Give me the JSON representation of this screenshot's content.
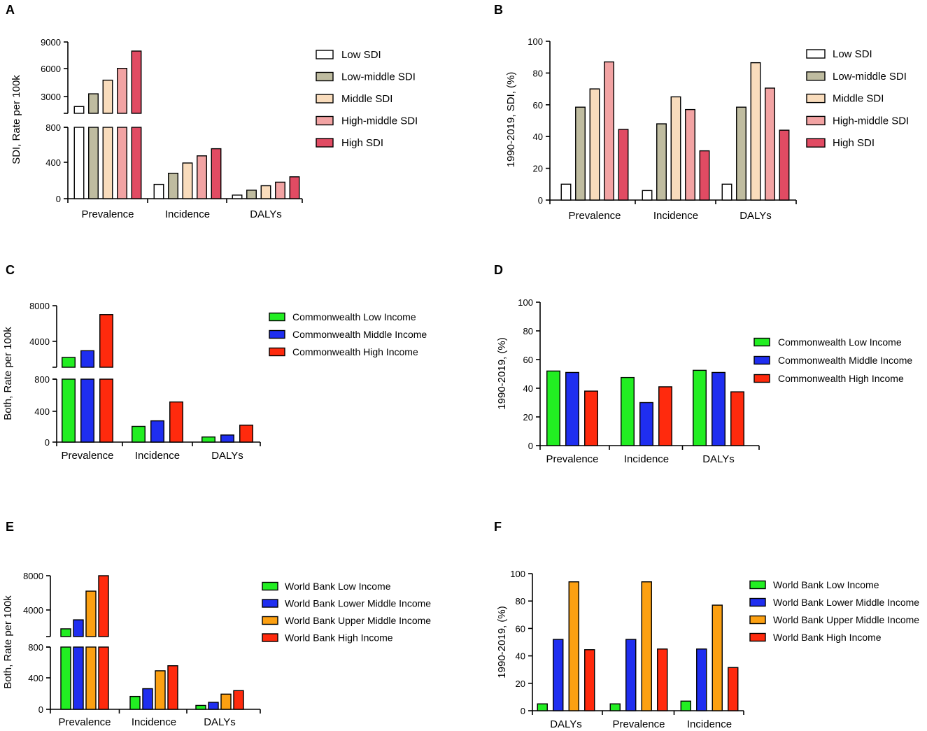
{
  "chart_data": [
    {
      "panel": "A",
      "type": "bar",
      "broken_axis": true,
      "ylabel": "SDI, Rate per 100k",
      "categories": [
        "Prevalence",
        "Incidence",
        "DALYs"
      ],
      "series": [
        {
          "name": "Low SDI",
          "color": "#ffffff",
          "values": [
            1900,
            160,
            40
          ]
        },
        {
          "name": "Low-middle SDI",
          "color": "#bfbca0",
          "values": [
            3300,
            285,
            95
          ]
        },
        {
          "name": "Middle SDI",
          "color": "#f9dcbc",
          "values": [
            4800,
            400,
            145
          ]
        },
        {
          "name": "High-middle SDI",
          "color": "#f2a3a3",
          "values": [
            6100,
            480,
            185
          ]
        },
        {
          "name": "High SDI",
          "color": "#e14b63",
          "values": [
            8000,
            560,
            245
          ]
        }
      ],
      "lower_ticks": [
        "0",
        "400",
        "800"
      ],
      "upper_ticks": [
        "3000",
        "6000",
        "9000"
      ]
    },
    {
      "panel": "B",
      "type": "bar",
      "ylabel": "1990-2019, SDI, (%)",
      "ylim": [
        0,
        100
      ],
      "yticks": [
        "0",
        "20",
        "40",
        "60",
        "80",
        "100"
      ],
      "categories": [
        "Prevalence",
        "Incidence",
        "DALYs"
      ],
      "series": [
        {
          "name": "Low SDI",
          "color": "#ffffff",
          "values": [
            10,
            6,
            10
          ]
        },
        {
          "name": "Low-middle SDI",
          "color": "#bfbca0",
          "values": [
            58.5,
            48,
            58.5
          ]
        },
        {
          "name": "Middle SDI",
          "color": "#f9dcbc",
          "values": [
            70,
            65,
            86.5
          ]
        },
        {
          "name": "High-middle SDI",
          "color": "#f2a3a3",
          "values": [
            87,
            57,
            70.5
          ]
        },
        {
          "name": "High SDI",
          "color": "#e14b63",
          "values": [
            44.5,
            31,
            44
          ]
        }
      ]
    },
    {
      "panel": "C",
      "type": "bar",
      "broken_axis": true,
      "ylabel": "Both, Rate per 100k",
      "categories": [
        "Prevalence",
        "Incidence",
        "DALYs"
      ],
      "series": [
        {
          "name": "Commonwealth Low Income",
          "color": "#22ee22",
          "values": [
            2200,
            200,
            65
          ]
        },
        {
          "name": "Commonwealth Middle Income",
          "color": "#1f2ef0",
          "values": [
            2950,
            270,
            90
          ]
        },
        {
          "name": "Commonwealth High Income",
          "color": "#ff2a0d",
          "values": [
            7000,
            510,
            215
          ]
        }
      ],
      "lower_ticks": [
        "0",
        "400",
        "800"
      ],
      "upper_ticks": [
        "4000",
        "8000"
      ]
    },
    {
      "panel": "D",
      "type": "bar",
      "ylabel": "1990-2019, (%)",
      "ylim": [
        0,
        100
      ],
      "yticks": [
        "0",
        "20",
        "40",
        "60",
        "80",
        "100"
      ],
      "categories": [
        "Prevalence",
        "Incidence",
        "DALYs"
      ],
      "series": [
        {
          "name": "Commonwealth Low Income",
          "color": "#22ee22",
          "values": [
            52,
            47.5,
            52.5
          ]
        },
        {
          "name": "Commonwealth Middle Income",
          "color": "#1f2ef0",
          "values": [
            51,
            30,
            51
          ]
        },
        {
          "name": "Commonwealth High Income",
          "color": "#ff2a0d",
          "values": [
            38,
            41,
            37.5
          ]
        }
      ]
    },
    {
      "panel": "E",
      "type": "bar",
      "broken_axis": true,
      "ylabel": "Both, Rate per 100k",
      "categories": [
        "Prevalence",
        "Incidence",
        "DALYs"
      ],
      "series": [
        {
          "name": "World Bank Low Income",
          "color": "#22ee22",
          "values": [
            1800,
            165,
            50
          ]
        },
        {
          "name": "World Bank Lower Middle Income",
          "color": "#1f2ef0",
          "values": [
            2850,
            265,
            90
          ]
        },
        {
          "name": "World Bank Upper Middle Income",
          "color": "#fca012",
          "values": [
            6200,
            495,
            195
          ]
        },
        {
          "name": "World Bank High Income",
          "color": "#ff2a0d",
          "values": [
            8000,
            560,
            240
          ]
        }
      ],
      "lower_ticks": [
        "0",
        "400",
        "800"
      ],
      "upper_ticks": [
        "4000",
        "8000"
      ]
    },
    {
      "panel": "F",
      "type": "bar",
      "ylabel": "1990-2019, (%)",
      "ylim": [
        0,
        100
      ],
      "yticks": [
        "0",
        "20",
        "40",
        "60",
        "80",
        "100"
      ],
      "categories": [
        "DALYs",
        "Prevalence",
        "Incidence"
      ],
      "series": [
        {
          "name": "World Bank Low Income",
          "color": "#22ee22",
          "values": [
            5,
            5,
            7
          ]
        },
        {
          "name": "World Bank Lower Middle Income",
          "color": "#1f2ef0",
          "values": [
            52,
            52,
            45
          ]
        },
        {
          "name": "World Bank Upper Middle Income",
          "color": "#fca012",
          "values": [
            94,
            94,
            77
          ]
        },
        {
          "name": "World Bank High Income",
          "color": "#ff2a0d",
          "values": [
            44.5,
            45,
            31.5
          ]
        }
      ]
    }
  ]
}
